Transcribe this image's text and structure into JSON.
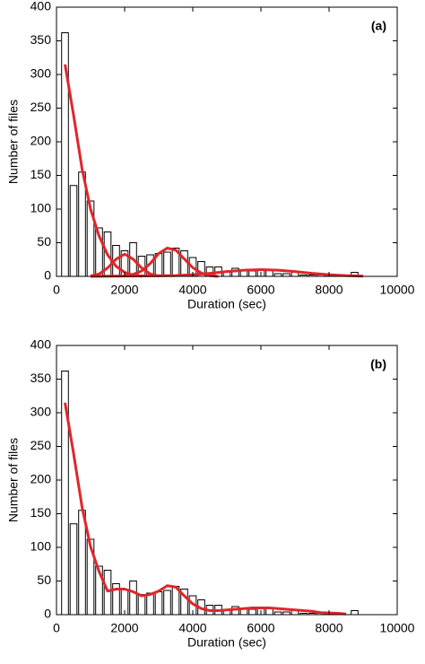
{
  "chart_data": [
    {
      "type": "bar",
      "annotation": "(a)",
      "xlabel": "Duration (sec)",
      "ylabel": "Number of files",
      "x": [
        250,
        500,
        750,
        1000,
        1250,
        1500,
        1750,
        2000,
        2250,
        2500,
        2750,
        3000,
        3250,
        3500,
        3750,
        4000,
        4250,
        4500,
        4750,
        5000,
        5250,
        5500,
        5750,
        6000,
        6250,
        6500,
        6750,
        7000,
        7250,
        7500,
        7750,
        8000,
        8250,
        8500,
        8750
      ],
      "values": [
        362,
        135,
        155,
        112,
        72,
        66,
        46,
        38,
        50,
        30,
        32,
        34,
        36,
        42,
        38,
        28,
        22,
        14,
        14,
        8,
        12,
        10,
        8,
        10,
        10,
        4,
        4,
        6,
        2,
        2,
        2,
        2,
        0,
        0,
        6
      ],
      "color": "#ffffff",
      "edgecolor": "#000000",
      "lines": [
        {
          "color": "#e0262b",
          "x": [
            250,
            500,
            750,
            1000,
            1250,
            1500,
            1750,
            2000,
            2250,
            2500
          ],
          "values": [
            315,
            240,
            160,
            100,
            60,
            32,
            15,
            6,
            2,
            0
          ]
        },
        {
          "color": "#e0262b",
          "x": [
            1000,
            1250,
            1500,
            1750,
            2000,
            2250,
            2500,
            2750,
            3000
          ],
          "values": [
            0.6,
            3.5,
            12.5,
            25.6,
            33,
            25.6,
            12.5,
            3.5,
            0.6
          ]
        },
        {
          "color": "#e0262b",
          "x": [
            2000,
            2250,
            2500,
            2750,
            3000,
            3250,
            3500,
            3750,
            4000,
            4250,
            4500,
            4750
          ],
          "values": [
            1,
            3,
            8,
            19,
            34,
            42,
            39,
            26,
            13,
            5,
            1,
            0
          ]
        },
        {
          "color": "#e0262b",
          "x": [
            1000,
            3500,
            4000,
            4500,
            5000,
            5500,
            6000,
            6500,
            7000,
            7500,
            8000,
            8500,
            9000
          ],
          "values": [
            0,
            1.1,
            2.5,
            4.5,
            7.1,
            9.2,
            10,
            9.2,
            7.1,
            4.5,
            2.5,
            1.1,
            0.4
          ]
        }
      ],
      "xlim": [
        0,
        10000
      ],
      "ylim": [
        0,
        400
      ],
      "xticks": [
        0,
        2000,
        4000,
        6000,
        8000,
        10000
      ],
      "yticks": [
        0,
        50,
        100,
        150,
        200,
        250,
        300,
        350,
        400
      ]
    },
    {
      "type": "bar",
      "annotation": "(b)",
      "xlabel": "Duration (sec)",
      "ylabel": "Number of files",
      "x": [
        250,
        500,
        750,
        1000,
        1250,
        1500,
        1750,
        2000,
        2250,
        2500,
        2750,
        3000,
        3250,
        3500,
        3750,
        4000,
        4250,
        4500,
        4750,
        5000,
        5250,
        5500,
        5750,
        6000,
        6250,
        6500,
        6750,
        7000,
        7250,
        7500,
        7750,
        8000,
        8250,
        8500,
        8750
      ],
      "values": [
        362,
        135,
        155,
        112,
        72,
        66,
        46,
        38,
        50,
        30,
        32,
        34,
        36,
        42,
        38,
        28,
        22,
        14,
        14,
        8,
        12,
        10,
        8,
        10,
        10,
        4,
        4,
        6,
        2,
        2,
        2,
        2,
        0,
        0,
        6
      ],
      "color": "#ffffff",
      "edgecolor": "#000000",
      "lines": [
        {
          "color": "#e0262b",
          "x": [
            250,
            500,
            750,
            1000,
            1250,
            1500,
            1750,
            2000,
            2250,
            2500,
            2750,
            3000,
            3250,
            3500,
            3750,
            4000,
            4250,
            4500,
            4750,
            5000,
            5250,
            5500,
            5750,
            6000,
            6250,
            6500,
            6750,
            7000,
            7250,
            7500,
            7750,
            8000,
            8250,
            8500
          ],
          "values": [
            315,
            240,
            160,
            101,
            64,
            35,
            38,
            38,
            34,
            28,
            30,
            35,
            43,
            41,
            28,
            16,
            9,
            6,
            6,
            7,
            8,
            9,
            10,
            10,
            10,
            9,
            8,
            7,
            6,
            5,
            3,
            2.5,
            2,
            1
          ]
        }
      ],
      "xlim": [
        0,
        10000
      ],
      "ylim": [
        0,
        400
      ],
      "xticks": [
        0,
        2000,
        4000,
        6000,
        8000,
        10000
      ],
      "yticks": [
        0,
        50,
        100,
        150,
        200,
        250,
        300,
        350,
        400
      ]
    }
  ]
}
